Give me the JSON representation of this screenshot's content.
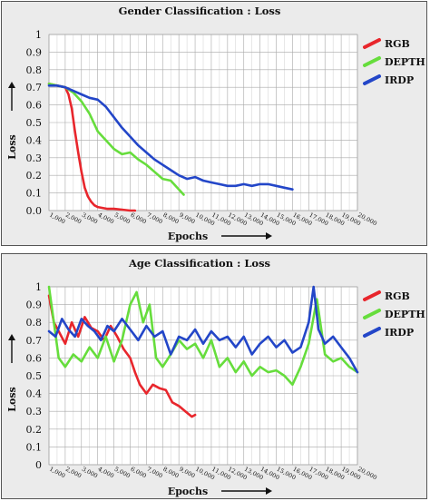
{
  "colors": {
    "RGB": "#e8262c",
    "DEPTH": "#66dd3c",
    "IRDP": "#2346c8",
    "grid": "#a8a8a8",
    "panel_bg": "#ebebeb",
    "plot_bg": "#ffffff"
  },
  "chart_data": [
    {
      "type": "line",
      "title": "Gender Classification : Loss",
      "xlabel": "Epochs",
      "ylabel": "Loss",
      "ylim": [
        0,
        1
      ],
      "xlim": [
        1000,
        20000
      ],
      "yticks": [
        "0.0",
        "0.1",
        "0.2",
        "0.3",
        "0.4",
        "0.5",
        "0.6",
        "0.7",
        "0.8",
        "0.9",
        "1"
      ],
      "xticks": [
        "1,000",
        "2,000",
        "3,000",
        "4,000",
        "5,000",
        "6,000",
        "7,000",
        "8,000",
        "9,000",
        "10,000",
        "11,000",
        "12,000",
        "13,000",
        "14,000",
        "15,000",
        "16,000",
        "17,000",
        "18,000",
        "19,000",
        "20,000"
      ],
      "grid": true,
      "legend_position": "right",
      "series": [
        {
          "name": "RGB",
          "color": "#e8262c",
          "x": [
            1000,
            1500,
            2000,
            2200,
            2400,
            2600,
            2800,
            3000,
            3200,
            3400,
            3600,
            3800,
            4000,
            4300,
            4600,
            5000,
            5500,
            6000,
            6300
          ],
          "y": [
            0.72,
            0.71,
            0.7,
            0.66,
            0.58,
            0.45,
            0.33,
            0.22,
            0.13,
            0.08,
            0.05,
            0.03,
            0.02,
            0.015,
            0.01,
            0.01,
            0.005,
            0.0,
            0.0
          ]
        },
        {
          "name": "DEPTH",
          "color": "#66dd3c",
          "x": [
            1000,
            1500,
            2000,
            2500,
            3000,
            3500,
            4000,
            4500,
            5000,
            5500,
            6000,
            6500,
            7000,
            7500,
            8000,
            8500,
            9000,
            9300
          ],
          "y": [
            0.72,
            0.71,
            0.7,
            0.67,
            0.62,
            0.55,
            0.45,
            0.4,
            0.35,
            0.32,
            0.33,
            0.29,
            0.26,
            0.22,
            0.18,
            0.17,
            0.12,
            0.09
          ]
        },
        {
          "name": "IRDP",
          "color": "#2346c8",
          "x": [
            1000,
            1500,
            2000,
            2500,
            3000,
            3500,
            4000,
            4500,
            5000,
            5500,
            6000,
            6500,
            7000,
            7500,
            8000,
            8500,
            9000,
            9500,
            10000,
            10500,
            11000,
            11500,
            12000,
            12500,
            13000,
            13500,
            14000,
            14500,
            15000,
            15500,
            16000
          ],
          "y": [
            0.71,
            0.71,
            0.7,
            0.68,
            0.66,
            0.64,
            0.63,
            0.59,
            0.53,
            0.47,
            0.42,
            0.37,
            0.33,
            0.29,
            0.26,
            0.23,
            0.2,
            0.18,
            0.19,
            0.17,
            0.16,
            0.15,
            0.14,
            0.14,
            0.15,
            0.14,
            0.15,
            0.15,
            0.14,
            0.13,
            0.12
          ]
        }
      ]
    },
    {
      "type": "line",
      "title": "Age Classification : Loss",
      "xlabel": "Epochs",
      "ylabel": "Loss",
      "ylim": [
        0,
        1
      ],
      "xlim": [
        1000,
        20000
      ],
      "yticks": [
        "0",
        "0.1",
        "0.2",
        "0.3",
        "0.4",
        "0.5",
        "0.6",
        "0.7",
        "0.8",
        "0.9",
        "1"
      ],
      "xticks": [
        "1,000",
        "2,000",
        "3,000",
        "4,000",
        "5,000",
        "6,000",
        "7,000",
        "8,000",
        "9,000",
        "10,000",
        "11,000",
        "12,000",
        "13,000",
        "14,000",
        "15,000",
        "16,000",
        "17,000",
        "18,000",
        "19,000",
        "20,000"
      ],
      "grid": true,
      "legend_position": "right",
      "series": [
        {
          "name": "RGB",
          "color": "#e8262c",
          "x": [
            1000,
            1300,
            1600,
            2000,
            2400,
            2800,
            3200,
            3600,
            4000,
            4400,
            4800,
            5200,
            5600,
            6000,
            6300,
            6600,
            7000,
            7400,
            7800,
            8200,
            8600,
            9000,
            9400,
            9800,
            10000
          ],
          "y": [
            0.95,
            0.8,
            0.75,
            0.68,
            0.8,
            0.72,
            0.83,
            0.77,
            0.75,
            0.7,
            0.78,
            0.72,
            0.65,
            0.6,
            0.52,
            0.45,
            0.4,
            0.45,
            0.43,
            0.42,
            0.35,
            0.33,
            0.3,
            0.27,
            0.28
          ]
        },
        {
          "name": "DEPTH",
          "color": "#66dd3c",
          "x": [
            1000,
            1300,
            1600,
            2000,
            2500,
            3000,
            3500,
            4000,
            4500,
            5000,
            5500,
            6000,
            6400,
            6800,
            7200,
            7600,
            8000,
            8500,
            9000,
            9500,
            10000,
            10500,
            11000,
            11500,
            12000,
            12500,
            13000,
            13500,
            14000,
            14500,
            15000,
            15500,
            16000,
            16500,
            17000,
            17500,
            18000,
            18500,
            19000,
            19500,
            20000
          ],
          "y": [
            1.0,
            0.8,
            0.6,
            0.55,
            0.62,
            0.58,
            0.66,
            0.6,
            0.72,
            0.58,
            0.7,
            0.9,
            0.97,
            0.8,
            0.9,
            0.6,
            0.55,
            0.62,
            0.7,
            0.65,
            0.68,
            0.6,
            0.7,
            0.55,
            0.6,
            0.52,
            0.58,
            0.5,
            0.55,
            0.52,
            0.53,
            0.5,
            0.45,
            0.55,
            0.68,
            0.93,
            0.62,
            0.58,
            0.6,
            0.55,
            0.52
          ]
        },
        {
          "name": "IRDP",
          "color": "#2346c8",
          "x": [
            1000,
            1400,
            1800,
            2200,
            2600,
            3000,
            3400,
            3800,
            4200,
            4600,
            5000,
            5500,
            6000,
            6500,
            7000,
            7500,
            8000,
            8500,
            9000,
            9500,
            10000,
            10500,
            11000,
            11500,
            12000,
            12500,
            13000,
            13500,
            14000,
            14500,
            15000,
            15500,
            16000,
            16500,
            17000,
            17300,
            17600,
            18000,
            18500,
            19000,
            19500,
            20000
          ],
          "y": [
            0.75,
            0.72,
            0.82,
            0.76,
            0.72,
            0.82,
            0.78,
            0.75,
            0.7,
            0.78,
            0.75,
            0.82,
            0.76,
            0.7,
            0.78,
            0.72,
            0.75,
            0.62,
            0.72,
            0.7,
            0.76,
            0.68,
            0.75,
            0.7,
            0.72,
            0.66,
            0.72,
            0.62,
            0.68,
            0.72,
            0.66,
            0.7,
            0.63,
            0.66,
            0.8,
            1.0,
            0.76,
            0.68,
            0.72,
            0.66,
            0.6,
            0.52
          ]
        }
      ]
    }
  ]
}
